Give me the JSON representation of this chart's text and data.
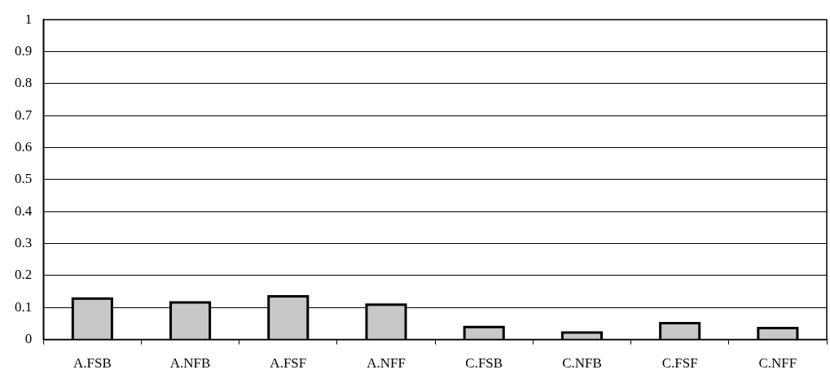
{
  "chart_data": {
    "type": "bar",
    "categories": [
      "A.FSB",
      "A.NFB",
      "A.FSF",
      "A.NFF",
      "C.FSB",
      "C.NFB",
      "C.FSF",
      "C.NFF"
    ],
    "values": [
      0.128,
      0.116,
      0.135,
      0.109,
      0.039,
      0.022,
      0.051,
      0.036
    ],
    "color": "#c8c8c8",
    "ylim": [
      0,
      1
    ],
    "yticks": [
      0,
      0.1,
      0.2,
      0.3,
      0.4,
      0.5,
      0.6,
      0.7,
      0.8,
      0.9,
      1
    ],
    "grid": "y"
  }
}
